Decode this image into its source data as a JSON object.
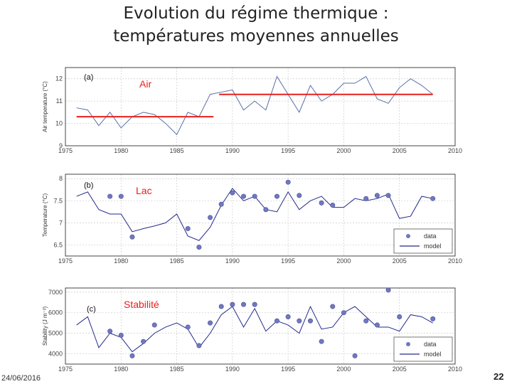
{
  "slide": {
    "title_line1": "Evolution du régime thermique :",
    "title_line2": "températures moyennes annuelles",
    "footer_date": "24/06/2016",
    "page_number": "22"
  },
  "colors": {
    "line": "#5a6fa8",
    "model": "#222a8a",
    "red": "#e8201c",
    "marker": "#7078c0",
    "grid": "#cccccc"
  },
  "chart_data": [
    {
      "type": "line",
      "panel": "(a)",
      "annotation": "Air",
      "ylabel": "Air temperature (°C)",
      "xlim": [
        1975,
        2010
      ],
      "ylim": [
        9,
        12.5
      ],
      "xticks": [
        1975,
        1980,
        1985,
        1990,
        1995,
        2000,
        2005,
        2010
      ],
      "yticks": [
        9,
        10,
        11,
        12
      ],
      "grid": true,
      "series": [
        {
          "x": [
            1976,
            1977,
            1978,
            1979,
            1980,
            1981,
            1982,
            1983,
            1984,
            1985,
            1986,
            1987,
            1988,
            1989,
            1990,
            1991,
            1992,
            1993,
            1994,
            1995,
            1996,
            1997,
            1998,
            1999,
            2000,
            2001,
            2002,
            2003,
            2004,
            2005,
            2006,
            2007,
            2008
          ],
          "y": [
            10.7,
            10.6,
            9.9,
            10.5,
            9.8,
            10.3,
            10.5,
            10.4,
            10.0,
            9.5,
            10.5,
            10.3,
            11.3,
            11.4,
            11.5,
            10.6,
            11.0,
            10.6,
            12.1,
            11.3,
            10.5,
            11.7,
            11.0,
            11.3,
            11.8,
            11.8,
            12.1,
            11.1,
            10.9,
            11.6,
            12.0,
            11.7,
            11.3
          ]
        }
      ],
      "mean_lines": [
        {
          "x": [
            1976,
            1988.3
          ],
          "y": 10.3
        },
        {
          "x": [
            1988.8,
            2008
          ],
          "y": 11.3
        }
      ]
    },
    {
      "type": "line",
      "panel": "(b)",
      "annotation": "Lac",
      "ylabel": "Temperature (°C)",
      "xlim": [
        1975,
        2010
      ],
      "ylim": [
        6.25,
        8.1
      ],
      "xticks": [
        1975,
        1980,
        1985,
        1990,
        1995,
        2000,
        2005,
        2010
      ],
      "yticks": [
        6.5,
        7,
        7.5,
        8
      ],
      "grid": true,
      "legend": {
        "position": "bottom-right",
        "data_label": "data",
        "model_label": "model"
      },
      "model": {
        "x": [
          1976,
          1977,
          1978,
          1979,
          1980,
          1981,
          1982,
          1983,
          1984,
          1985,
          1986,
          1987,
          1988,
          1989,
          1990,
          1991,
          1992,
          1993,
          1994,
          1995,
          1996,
          1997,
          1998,
          1999,
          2000,
          2001,
          2002,
          2003,
          2004,
          2005,
          2006,
          2007,
          2008
        ],
        "y": [
          7.6,
          7.7,
          7.3,
          7.2,
          7.2,
          6.8,
          6.87,
          6.93,
          7.0,
          7.2,
          6.7,
          6.6,
          6.9,
          7.4,
          7.78,
          7.5,
          7.6,
          7.3,
          7.25,
          7.7,
          7.3,
          7.5,
          7.6,
          7.35,
          7.35,
          7.55,
          7.5,
          7.55,
          7.65,
          7.1,
          7.15,
          7.6,
          7.55
        ]
      },
      "data": {
        "x": [
          1979,
          1980,
          1981,
          1986,
          1987,
          1988,
          1989,
          1990,
          1991,
          1992,
          1993,
          1994,
          1995,
          1996,
          1998,
          1999,
          2002,
          2003,
          2004,
          2008
        ],
        "y": [
          7.6,
          7.6,
          6.68,
          6.87,
          6.45,
          7.12,
          7.42,
          7.68,
          7.6,
          7.6,
          7.3,
          7.6,
          7.92,
          7.62,
          7.45,
          7.4,
          7.55,
          7.62,
          7.62,
          7.55
        ]
      }
    },
    {
      "type": "line",
      "panel": "(c)",
      "annotation": "Stabilité",
      "ylabel": "Stability (J m⁻²)",
      "xlim": [
        1975,
        2010
      ],
      "ylim": [
        3500,
        7200
      ],
      "xticks": [
        1975,
        1980,
        1985,
        1990,
        1995,
        2000,
        2005,
        2010
      ],
      "yticks": [
        4000,
        5000,
        6000,
        7000
      ],
      "ytick_labels": [
        "4000",
        "5000",
        "6000",
        "7000"
      ],
      "grid": true,
      "legend": {
        "position": "bottom-right",
        "data_label": "data",
        "model_label": "model"
      },
      "model": {
        "x": [
          1976,
          1977,
          1978,
          1979,
          1980,
          1981,
          1982,
          1983,
          1984,
          1985,
          1986,
          1987,
          1988,
          1989,
          1990,
          1991,
          1992,
          1993,
          1994,
          1995,
          1996,
          1997,
          1998,
          1999,
          2000,
          2001,
          2002,
          2003,
          2004,
          2005,
          2006,
          2007,
          2008
        ],
        "y": [
          5400,
          5800,
          4300,
          5000,
          4800,
          4100,
          4500,
          5000,
          5300,
          5500,
          5200,
          4300,
          5000,
          5900,
          6300,
          5300,
          6200,
          5100,
          5600,
          5400,
          5000,
          6300,
          5200,
          5300,
          6000,
          6300,
          5800,
          5300,
          5300,
          5100,
          5900,
          5800,
          5500
        ]
      },
      "data": {
        "x": [
          1979,
          1980,
          1981,
          1982,
          1983,
          1986,
          1987,
          1988,
          1989,
          1990,
          1991,
          1992,
          1994,
          1995,
          1996,
          1997,
          1998,
          1999,
          2000,
          2001,
          2002,
          2003,
          2004,
          2005,
          2008
        ],
        "y": [
          5100,
          4900,
          3900,
          4600,
          5400,
          5300,
          4400,
          5500,
          6300,
          6400,
          6400,
          6400,
          5600,
          5800,
          5600,
          5600,
          4600,
          6300,
          6000,
          3900,
          5600,
          5400,
          7100,
          5800,
          5700
        ]
      }
    }
  ]
}
